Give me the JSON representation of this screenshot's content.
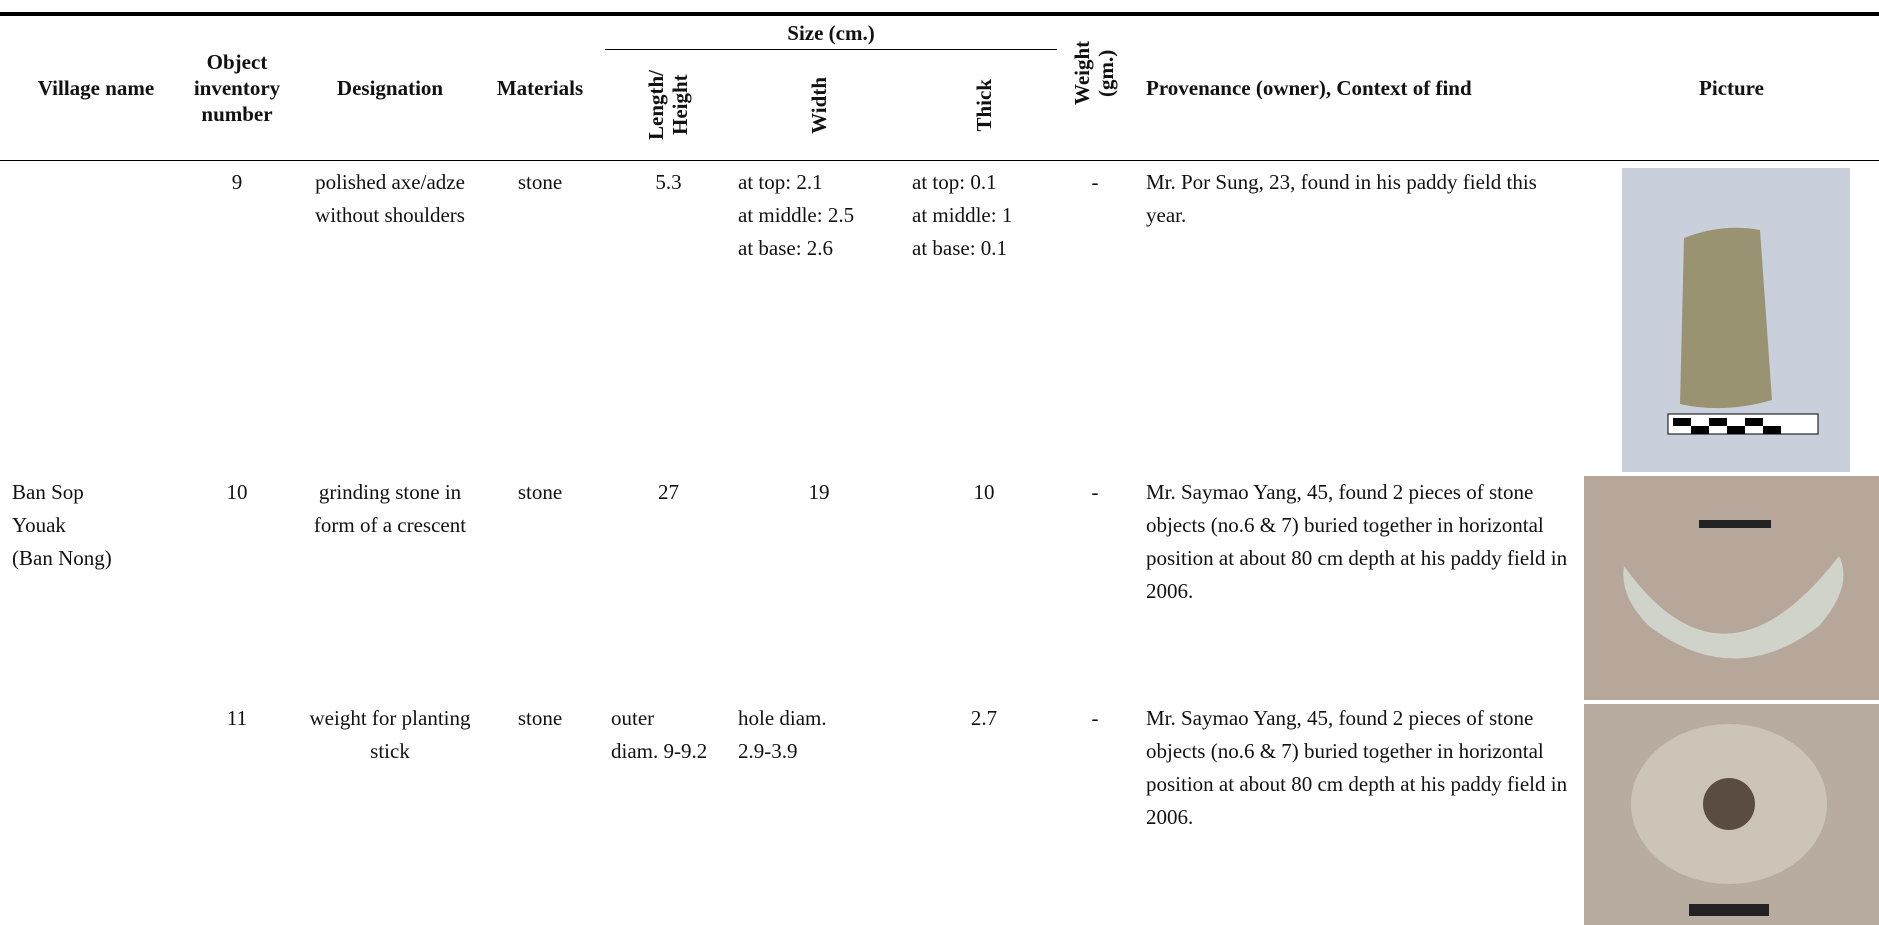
{
  "header": {
    "village": "Village name",
    "number": "Object inventory number",
    "designation": "Designation",
    "materials": "Materials",
    "size": "Size (cm.)",
    "length": "Length/ Height",
    "width": "Width",
    "thick": "Thick",
    "weight": "Weight (gm.)",
    "provenance": "Provenance (owner), Context of find",
    "picture": "Picture"
  },
  "rows": [
    {
      "number": "9",
      "designation": "polished axe/adze without shoulders",
      "materials": "stone",
      "length": "5.3",
      "width": [
        "at top: 2.1",
        "at middle: 2.5",
        "at base: 2.6"
      ],
      "thick": [
        "at top: 0.1",
        "at middle: 1",
        "at base: 0.1"
      ],
      "weight": "-",
      "provenance": "Mr. Por Sung, 23, found in his paddy field this year."
    },
    {
      "village": [
        "Ban Sop",
        "Youak",
        "(Ban Nong)"
      ],
      "number": "10",
      "designation": "grinding stone in form of a crescent",
      "materials": "stone",
      "length": "27",
      "width": "19",
      "thick": "10",
      "weight": "-",
      "provenance": "Mr. Saymao Yang, 45, found 2 pieces of stone objects (no.6 & 7) buried together in horizontal position at about 80 cm depth at his paddy field in 2006."
    },
    {
      "number": "11",
      "designation": "weight for planting stick",
      "materials": "stone",
      "length": [
        "outer",
        "diam. 9-9.2"
      ],
      "width": [
        "hole diam.",
        "2.9-3.9"
      ],
      "thick": "2.7",
      "weight": "-",
      "provenance": "Mr. Saymao Yang, 45, found 2 pieces of stone objects (no.6 & 7) buried together in horizontal position at about 80 cm depth at his paddy field in 2006."
    }
  ]
}
